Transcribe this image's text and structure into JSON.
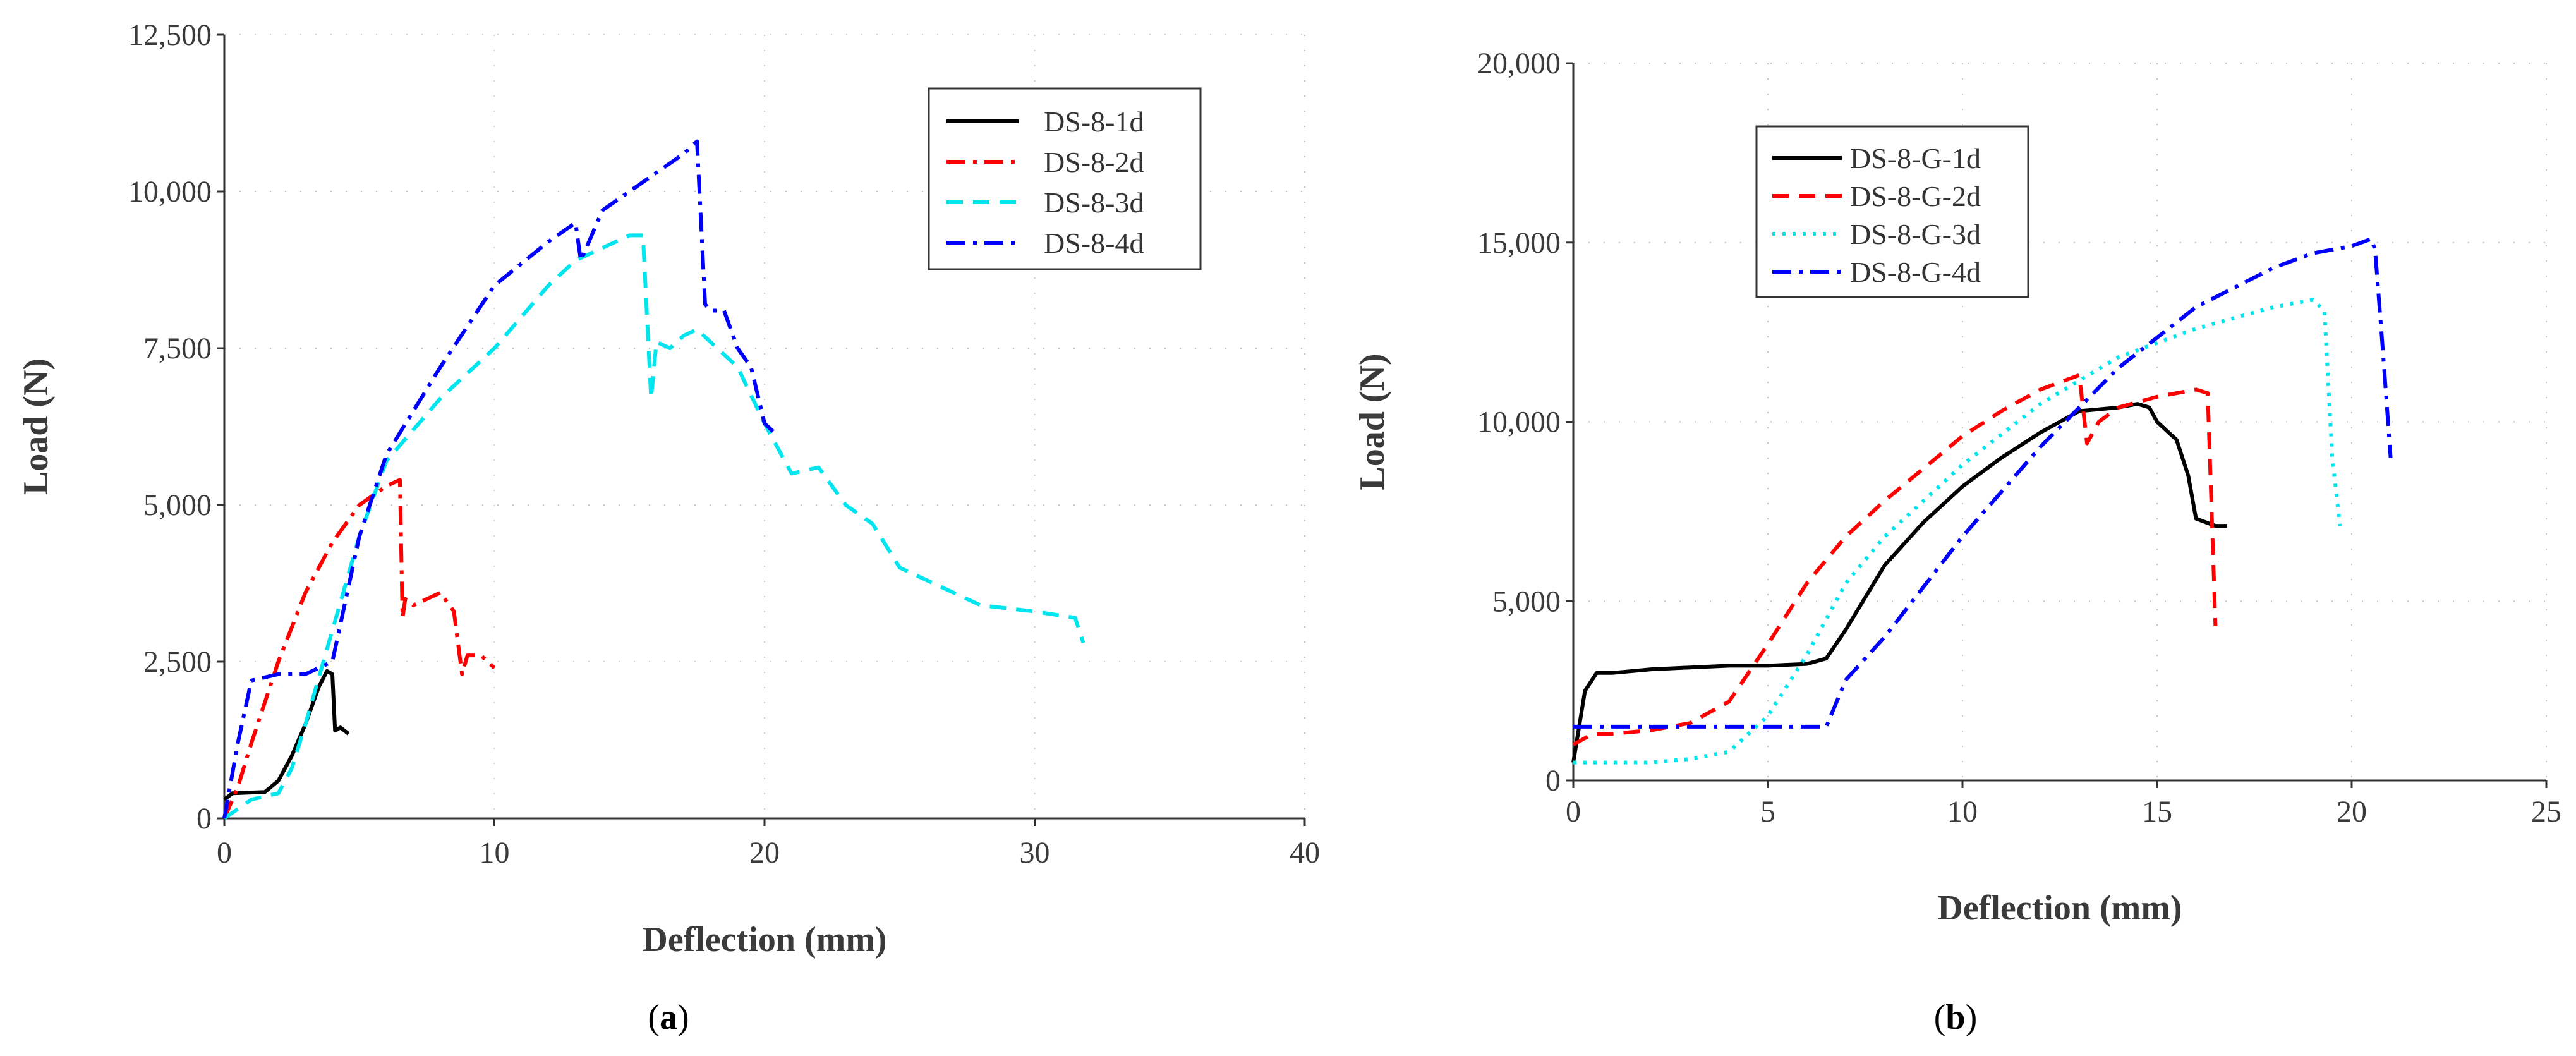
{
  "chart_data": [
    {
      "type": "line",
      "caption_letter": "a",
      "xlabel": "Deflection (mm)",
      "ylabel": "Load (N)",
      "xlim": [
        0,
        40
      ],
      "ylim": [
        0,
        12500
      ],
      "xticks": [
        "0",
        "10",
        "20",
        "30",
        "40"
      ],
      "yticks": [
        "0",
        "2,500",
        "5,000",
        "7,500",
        "10,000",
        "12,500"
      ],
      "legend_position": "top-right",
      "series": [
        {
          "name": "DS-8-1d",
          "color": "#000000",
          "dash": "solid",
          "x": [
            0,
            0.3,
            1.5,
            2.0,
            2.5,
            3.0,
            3.5,
            3.8,
            4.0,
            4.1,
            4.3,
            4.6
          ],
          "y": [
            300,
            400,
            420,
            600,
            1000,
            1500,
            2100,
            2350,
            2300,
            1400,
            1450,
            1350
          ]
        },
        {
          "name": "DS-8-2d",
          "color": "#ff0000",
          "dash": "dashdot",
          "x": [
            0,
            0.5,
            1.0,
            2.0,
            3.0,
            4.0,
            5.0,
            6.0,
            6.5,
            6.6,
            6.7,
            7.0,
            7.5,
            8.0,
            8.5,
            8.8,
            9.0,
            9.5,
            10.0
          ],
          "y": [
            0,
            500,
            1200,
            2500,
            3600,
            4400,
            5000,
            5300,
            5400,
            3200,
            3500,
            3400,
            3500,
            3600,
            3300,
            2300,
            2600,
            2600,
            2400
          ]
        },
        {
          "name": "DS-8-3d",
          "color": "#00e5ee",
          "dash": "dash",
          "x": [
            0,
            1.0,
            2.0,
            2.5,
            3.0,
            4.0,
            5.0,
            6.0,
            8.0,
            10.0,
            12.0,
            13.0,
            14.0,
            15.0,
            15.5,
            15.8,
            16.0,
            16.5,
            17.0,
            17.5,
            18.0,
            19.0,
            20.0,
            21.0,
            22.0,
            23.0,
            24.0,
            25.0,
            26.0,
            28.0,
            30.0,
            31.5,
            31.8
          ],
          "y": [
            0,
            300,
            400,
            800,
            1500,
            3000,
            4500,
            5700,
            6700,
            7500,
            8500,
            8900,
            9100,
            9300,
            9300,
            6700,
            7600,
            7500,
            7700,
            7800,
            7600,
            7200,
            6300,
            5500,
            5600,
            5000,
            4700,
            4000,
            3800,
            3400,
            3300,
            3200,
            2800
          ]
        },
        {
          "name": "DS-8-4d",
          "color": "#0000ff",
          "dash": "dashdot",
          "x": [
            0,
            0.5,
            1.0,
            2.0,
            3.0,
            4.0,
            5.0,
            6.0,
            8.0,
            10.0,
            12.0,
            13.0,
            13.2,
            14.0,
            15.0,
            16.0,
            17.0,
            17.5,
            17.8,
            18.0,
            18.5,
            19.0,
            19.5,
            20.0,
            20.5
          ],
          "y": [
            0,
            1200,
            2200,
            2300,
            2300,
            2500,
            4500,
            5800,
            7200,
            8500,
            9200,
            9500,
            8900,
            9700,
            10000,
            10300,
            10600,
            10800,
            8200,
            8100,
            8100,
            7500,
            7200,
            6300,
            6100
          ]
        }
      ]
    },
    {
      "type": "line",
      "caption_letter": "b",
      "xlabel": "Deflection (mm)",
      "ylabel": "Load (N)",
      "xlim": [
        0,
        25
      ],
      "ylim": [
        0,
        20000
      ],
      "xticks": [
        "0",
        "5",
        "10",
        "15",
        "20",
        "25"
      ],
      "yticks": [
        "0",
        "5,000",
        "10,000",
        "15,000",
        "20,000"
      ],
      "legend_position": "top-left",
      "series": [
        {
          "name": "DS-8-G-1d",
          "color": "#000000",
          "dash": "solid",
          "x": [
            0,
            0.3,
            0.6,
            1.0,
            2.0,
            3.0,
            4.0,
            5.0,
            6.0,
            6.5,
            7.0,
            8.0,
            9.0,
            10.0,
            11.0,
            12.0,
            13.0,
            14.0,
            14.5,
            14.8,
            15.0,
            15.5,
            15.8,
            16.0,
            16.5,
            16.8
          ],
          "y": [
            500,
            2500,
            3000,
            3000,
            3100,
            3150,
            3200,
            3200,
            3250,
            3400,
            4200,
            6000,
            7200,
            8200,
            9000,
            9700,
            10300,
            10400,
            10500,
            10400,
            10000,
            9500,
            8500,
            7300,
            7100,
            7100
          ]
        },
        {
          "name": "DS-8-G-2d",
          "color": "#ff0000",
          "dash": "dash",
          "x": [
            0,
            0.5,
            1.0,
            2.0,
            3.0,
            4.0,
            5.0,
            6.0,
            7.0,
            8.0,
            9.0,
            10.0,
            11.0,
            12.0,
            13.0,
            13.2,
            13.5,
            14.0,
            15.0,
            16.0,
            16.3,
            16.5
          ],
          "y": [
            1000,
            1300,
            1300,
            1400,
            1600,
            2200,
            3800,
            5500,
            6800,
            7800,
            8700,
            9600,
            10300,
            10900,
            11300,
            9400,
            10000,
            10400,
            10700,
            10900,
            10800,
            4300
          ]
        },
        {
          "name": "DS-8-G-3d",
          "color": "#00e5ee",
          "dash": "dot",
          "x": [
            0,
            0.5,
            1.0,
            2.0,
            3.0,
            4.0,
            5.0,
            6.0,
            7.0,
            8.0,
            10.0,
            12.0,
            14.0,
            16.0,
            18.0,
            19.0,
            19.3,
            19.5,
            19.7
          ],
          "y": [
            500,
            500,
            500,
            500,
            600,
            800,
            1800,
            3500,
            5500,
            6800,
            8800,
            10500,
            11800,
            12600,
            13200,
            13400,
            13100,
            9000,
            7100
          ]
        },
        {
          "name": "DS-8-G-4d",
          "color": "#0000ff",
          "dash": "dashdot",
          "x": [
            0,
            0.3,
            1.0,
            3.0,
            5.0,
            6.5,
            7.0,
            8.0,
            10.0,
            12.0,
            14.0,
            16.0,
            18.0,
            19.0,
            20.0,
            20.5,
            20.6,
            20.8,
            21.0
          ],
          "y": [
            1500,
            1500,
            1500,
            1500,
            1500,
            1500,
            2800,
            4000,
            6800,
            9300,
            11500,
            13200,
            14300,
            14700,
            14900,
            15100,
            14800,
            12000,
            9000
          ]
        }
      ]
    }
  ]
}
